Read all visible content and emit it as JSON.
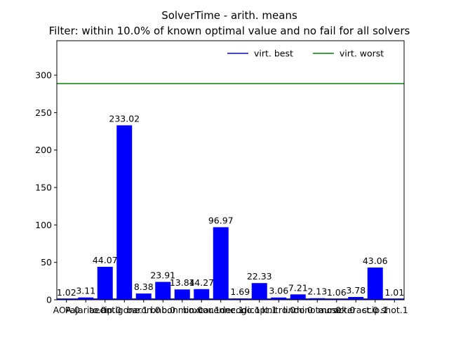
{
  "chart_data": {
    "type": "bar",
    "title": "SolverTime - arith. means",
    "subtitle": "Filter: within 10.0% of known optimal value and no fail for all solvers",
    "categories": [
      "AOA.0",
      "Pajarito.0",
      "aecip.0",
      "antigone.1",
      "baron.0",
      "bnb.0",
      "bonmin.0",
      "boxcar.1",
      "couenne.1",
      "decogo.1",
      "dicopt.1",
      "knitro.0",
      "lindo.0",
      "minotaur.0",
      "mosek.0",
      "octeract.0",
      "scip.1",
      "shot.1"
    ],
    "values": [
      1.02,
      3.11,
      44.07,
      233.02,
      8.38,
      23.91,
      13.84,
      14.27,
      96.97,
      1.69,
      22.33,
      3.06,
      7.21,
      2.13,
      1.06,
      3.78,
      43.06,
      1.01
    ],
    "color": "#0000ff",
    "lines": [
      {
        "name": "virt. best",
        "color": "#0000ff",
        "value": 1.01
      },
      {
        "name": "virt. worst",
        "color": "#008000",
        "value": 288.7
      }
    ],
    "ylim": [
      0,
      346
    ],
    "yticks": [
      0,
      50,
      100,
      150,
      200,
      250,
      300
    ],
    "legend": "upper right",
    "grid": false
  }
}
